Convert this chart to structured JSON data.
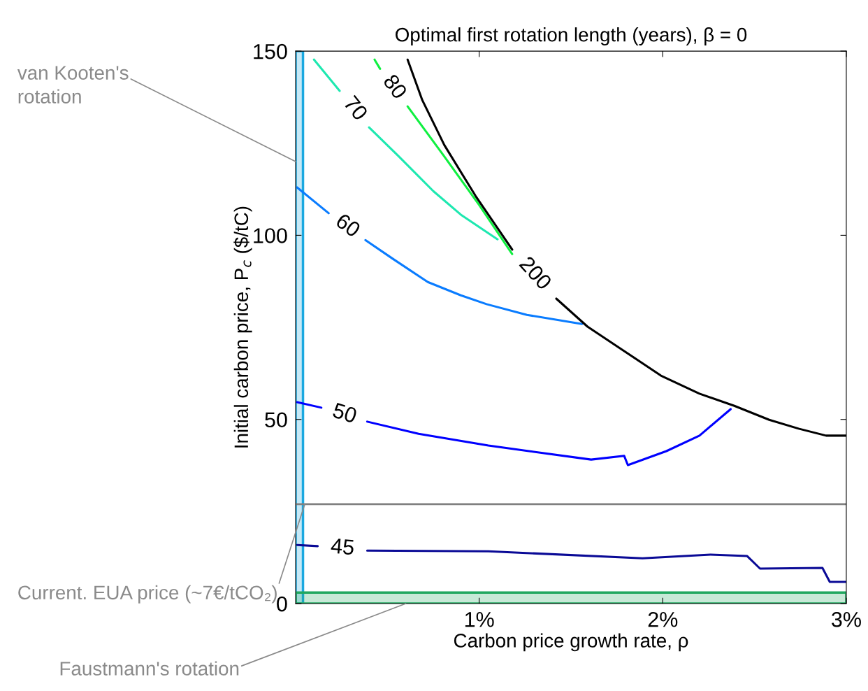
{
  "chart_data": {
    "type": "line",
    "title": "Optimal first rotation length (years), β = 0",
    "xlabel": "Carbon price growth rate, ρ",
    "ylabel": "Initial carbon price, P$_{c}$ ($/tC)",
    "series": [
      {
        "name": "45",
        "color": "#0a0a96",
        "x": [
          0.008,
          0.12,
          0.26,
          0.39,
          1.05,
          1.89,
          2.26,
          2.46,
          2.53,
          2.87,
          2.91,
          3.0
        ],
        "values": [
          15.9,
          15.6,
          null,
          14.4,
          14.2,
          12.3,
          13.3,
          12.9,
          9.5,
          9.7,
          5.9,
          5.9
        ]
      },
      {
        "name": "50",
        "color": "#0000ff",
        "x": [
          0.008,
          0.14,
          0.26,
          0.39,
          0.67,
          1.05,
          1.61,
          1.79,
          1.81,
          2.02,
          2.2,
          2.37
        ],
        "values": [
          54.7,
          53.2,
          null,
          49.4,
          46.1,
          42.9,
          39.1,
          40.1,
          37.6,
          41.4,
          45.6,
          52.8
        ]
      },
      {
        "name": "60",
        "color": "#0a7cff",
        "x": [
          0.008,
          0.18,
          0.28,
          0.38,
          0.53,
          0.72,
          0.9,
          1.04,
          1.26,
          1.56
        ],
        "values": [
          113.0,
          106.0,
          null,
          98.7,
          93.6,
          87.3,
          83.7,
          81.3,
          78.4,
          75.9
        ]
      },
      {
        "name": "70",
        "color": "#1ee8b0",
        "x": [
          0.1,
          0.24,
          0.32,
          0.4,
          0.56,
          0.75,
          0.9,
          1.1
        ],
        "values": [
          147.7,
          139.2,
          null,
          129.3,
          121.5,
          112.0,
          105.6,
          98.9
        ]
      },
      {
        "name": "80",
        "color": "#10f040",
        "x": [
          0.43,
          0.46,
          0.53,
          0.61,
          0.8,
          1.0,
          1.18
        ],
        "values": [
          147.7,
          145.2,
          null,
          135.0,
          122.1,
          108.2,
          94.9
        ]
      },
      {
        "name": "200",
        "color": "#000000",
        "x": [
          0.61,
          0.69,
          0.81,
          0.98,
          1.18,
          1.3,
          1.42,
          1.59,
          1.78,
          1.99,
          2.2,
          2.39,
          2.58,
          2.74,
          2.89,
          3.0
        ],
        "values": [
          147.7,
          136.7,
          124.5,
          110.7,
          96.1,
          null,
          82.8,
          75.2,
          68.9,
          61.9,
          57.0,
          53.7,
          49.9,
          47.5,
          45.6,
          45.6
        ]
      }
    ],
    "xlim": [
      0,
      3
    ],
    "ylim": [
      0,
      150
    ],
    "xticks": [
      {
        "value": 1,
        "label": "1%"
      },
      {
        "value": 2,
        "label": "2%"
      },
      {
        "value": 3,
        "label": "3%"
      }
    ],
    "yticks": [
      0,
      50,
      100,
      150
    ],
    "ref_lines": [
      {
        "axis": "y",
        "value": 27,
        "label": "Current. EUA price (~7€/tCO₂)",
        "color": "#808080"
      }
    ],
    "bands": [
      {
        "axis": "x",
        "from": 0,
        "to": 0.04,
        "label": "van Kooten's\nrotation",
        "color": "#1aa8e0"
      },
      {
        "axis": "y",
        "from": 0,
        "to": 3,
        "label": "Faustmann's rotation",
        "color": "#20a860"
      }
    ],
    "grid": false,
    "legend": false,
    "marker": "none",
    "line_style": "solid"
  }
}
